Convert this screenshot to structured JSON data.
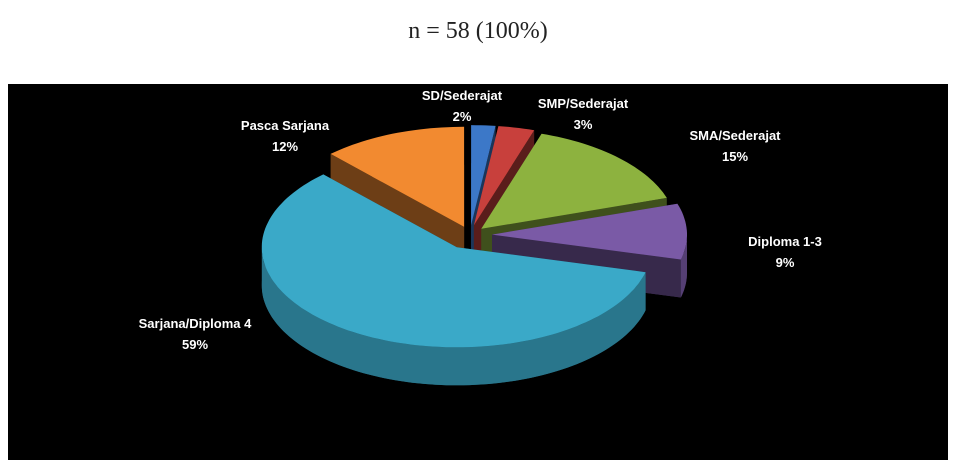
{
  "chart_data": {
    "type": "pie3d",
    "title": "n = 58 (100%)",
    "categories": [
      "SD/Sederajat",
      "SMP/Sederajat",
      "SMA/Sederajat",
      "Diploma 1-3",
      "Sarjana/Diploma 4",
      "Pasca Sarjana"
    ],
    "values": [
      2,
      3,
      15,
      9,
      59,
      12
    ],
    "value_labels": [
      "2%",
      "3%",
      "15%",
      "9%",
      "59%",
      "12%"
    ],
    "colors": [
      "#3c78c8",
      "#c8403c",
      "#8db23f",
      "#7a5aa6",
      "#3aa9c8",
      "#f28a30"
    ]
  }
}
